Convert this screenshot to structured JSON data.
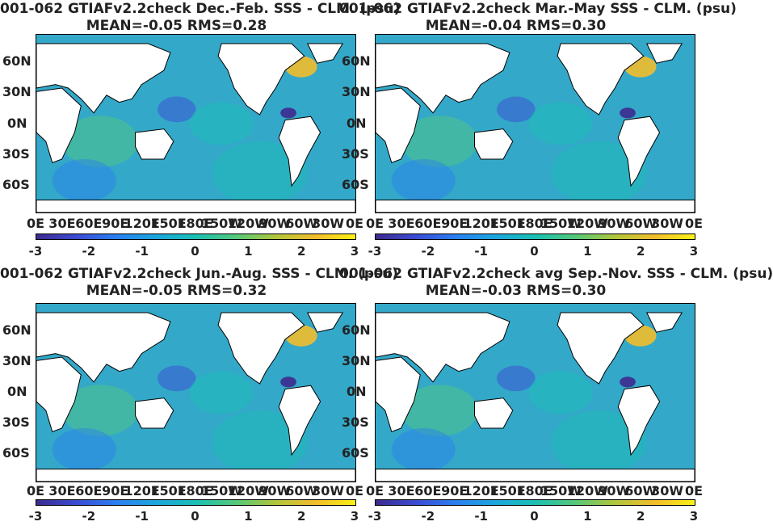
{
  "colors": {
    "ocean": "#33a8c9",
    "land": "#ffffff",
    "anomaly_pos": "#f2bd2c",
    "anomaly_neg": "#3b4bd3"
  },
  "chart_data": [
    {
      "type": "heatmap",
      "title": "001-062 GTIAFv2.2check  Dec.-Feb. SSS - CLM. (psu)",
      "subtitle": "MEAN=-0.05   RMS=0.28",
      "lat_ticks": [
        "60N",
        "30N",
        "0N",
        "30S",
        "60S"
      ],
      "lon_ticks": [
        "0E",
        "30E",
        "60E",
        "90E",
        "120E",
        "150E",
        "180E",
        "150W",
        "120W",
        "90W",
        "60W",
        "30W",
        "0E"
      ],
      "colorbar": {
        "min": -3,
        "max": 3,
        "ticks": [
          "-3",
          "-2",
          "-1",
          "0",
          "1",
          "2",
          "3"
        ]
      }
    },
    {
      "type": "heatmap",
      "title": "001-062 GTIAFv2.2check Mar.-May SSS - CLM. (psu)",
      "subtitle": "MEAN=-0.04   RMS=0.30",
      "lat_ticks": [
        "60N",
        "30N",
        "0N",
        "30S",
        "60S"
      ],
      "lon_ticks": [
        "0E",
        "30E",
        "60E",
        "90E",
        "120E",
        "150E",
        "180E",
        "150W",
        "120W",
        "90W",
        "60W",
        "30W",
        "0E"
      ],
      "colorbar": {
        "min": -3,
        "max": 3,
        "ticks": [
          "-3",
          "-2",
          "-1",
          "0",
          "1",
          "2",
          "3"
        ]
      }
    },
    {
      "type": "heatmap",
      "title": "001-062 GTIAFv2.2check Jun.-Aug. SSS - CLM. (psu)",
      "subtitle": "MEAN=-0.05   RMS=0.32",
      "lat_ticks": [
        "60N",
        "30N",
        "0N",
        "30S",
        "60S"
      ],
      "lon_ticks": [
        "0E",
        "30E",
        "60E",
        "90E",
        "120E",
        "150E",
        "180E",
        "150W",
        "120W",
        "90W",
        "60W",
        "30W",
        "0E"
      ],
      "colorbar": {
        "min": -3,
        "max": 3,
        "ticks": [
          "-3",
          "-2",
          "-1",
          "0",
          "1",
          "2",
          "3"
        ]
      }
    },
    {
      "type": "heatmap",
      "title": "001-062 GTIAFv2.2check avg Sep.-Nov. SSS - CLM. (psu)",
      "subtitle": "MEAN=-0.03   RMS=0.30",
      "lat_ticks": [
        "60N",
        "30N",
        "0N",
        "30S",
        "60S"
      ],
      "lon_ticks": [
        "0E",
        "30E",
        "60E",
        "90E",
        "120E",
        "150E",
        "180E",
        "150W",
        "120W",
        "90W",
        "60W",
        "30W",
        "0E"
      ],
      "colorbar": {
        "min": -3,
        "max": 3,
        "ticks": [
          "-3",
          "-2",
          "-1",
          "0",
          "1",
          "2",
          "3"
        ]
      }
    }
  ]
}
